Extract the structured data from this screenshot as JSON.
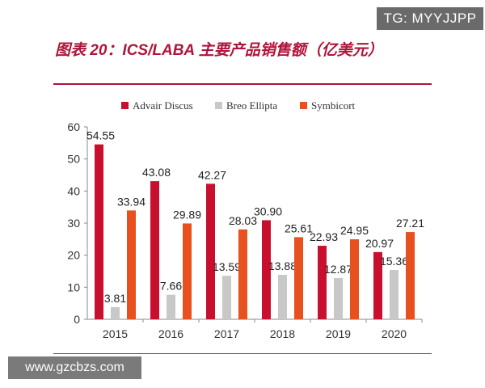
{
  "watermarks": {
    "top": "TG: MYYJJPP",
    "bottom": "www.gzcbzs.com"
  },
  "colors": {
    "advair": "#c8102e",
    "breo": "#c8c8c8",
    "symbicort": "#e8501e",
    "title": "#b0143a"
  },
  "chart_data": {
    "type": "bar",
    "title": "图表 20：ICS/LABA 主要产品销售额（亿美元）",
    "categories": [
      "2015",
      "2016",
      "2017",
      "2018",
      "2019",
      "2020"
    ],
    "series": [
      {
        "name": "Advair Discus",
        "values": [
          54.55,
          43.08,
          42.27,
          30.9,
          22.93,
          20.97
        ],
        "labels": [
          "54.55",
          "43.08",
          "42.27",
          "30.90",
          "22.93",
          "20.97"
        ]
      },
      {
        "name": "Breo Ellipta",
        "values": [
          3.81,
          7.66,
          13.59,
          13.88,
          12.87,
          15.36
        ],
        "labels": [
          "3.81",
          "7.66",
          "13.59",
          "13.88",
          "12.87",
          "15.36"
        ]
      },
      {
        "name": "Symbicort",
        "values": [
          33.94,
          29.89,
          28.03,
          25.61,
          24.95,
          27.21
        ],
        "labels": [
          "33.94",
          "29.89",
          "28.03",
          "25.61",
          "24.95",
          "27.21"
        ]
      }
    ],
    "ylim": [
      0,
      60
    ],
    "yticks": [
      "0",
      "10",
      "20",
      "30",
      "40",
      "50",
      "60"
    ],
    "legend_position": "top",
    "grid": false
  }
}
